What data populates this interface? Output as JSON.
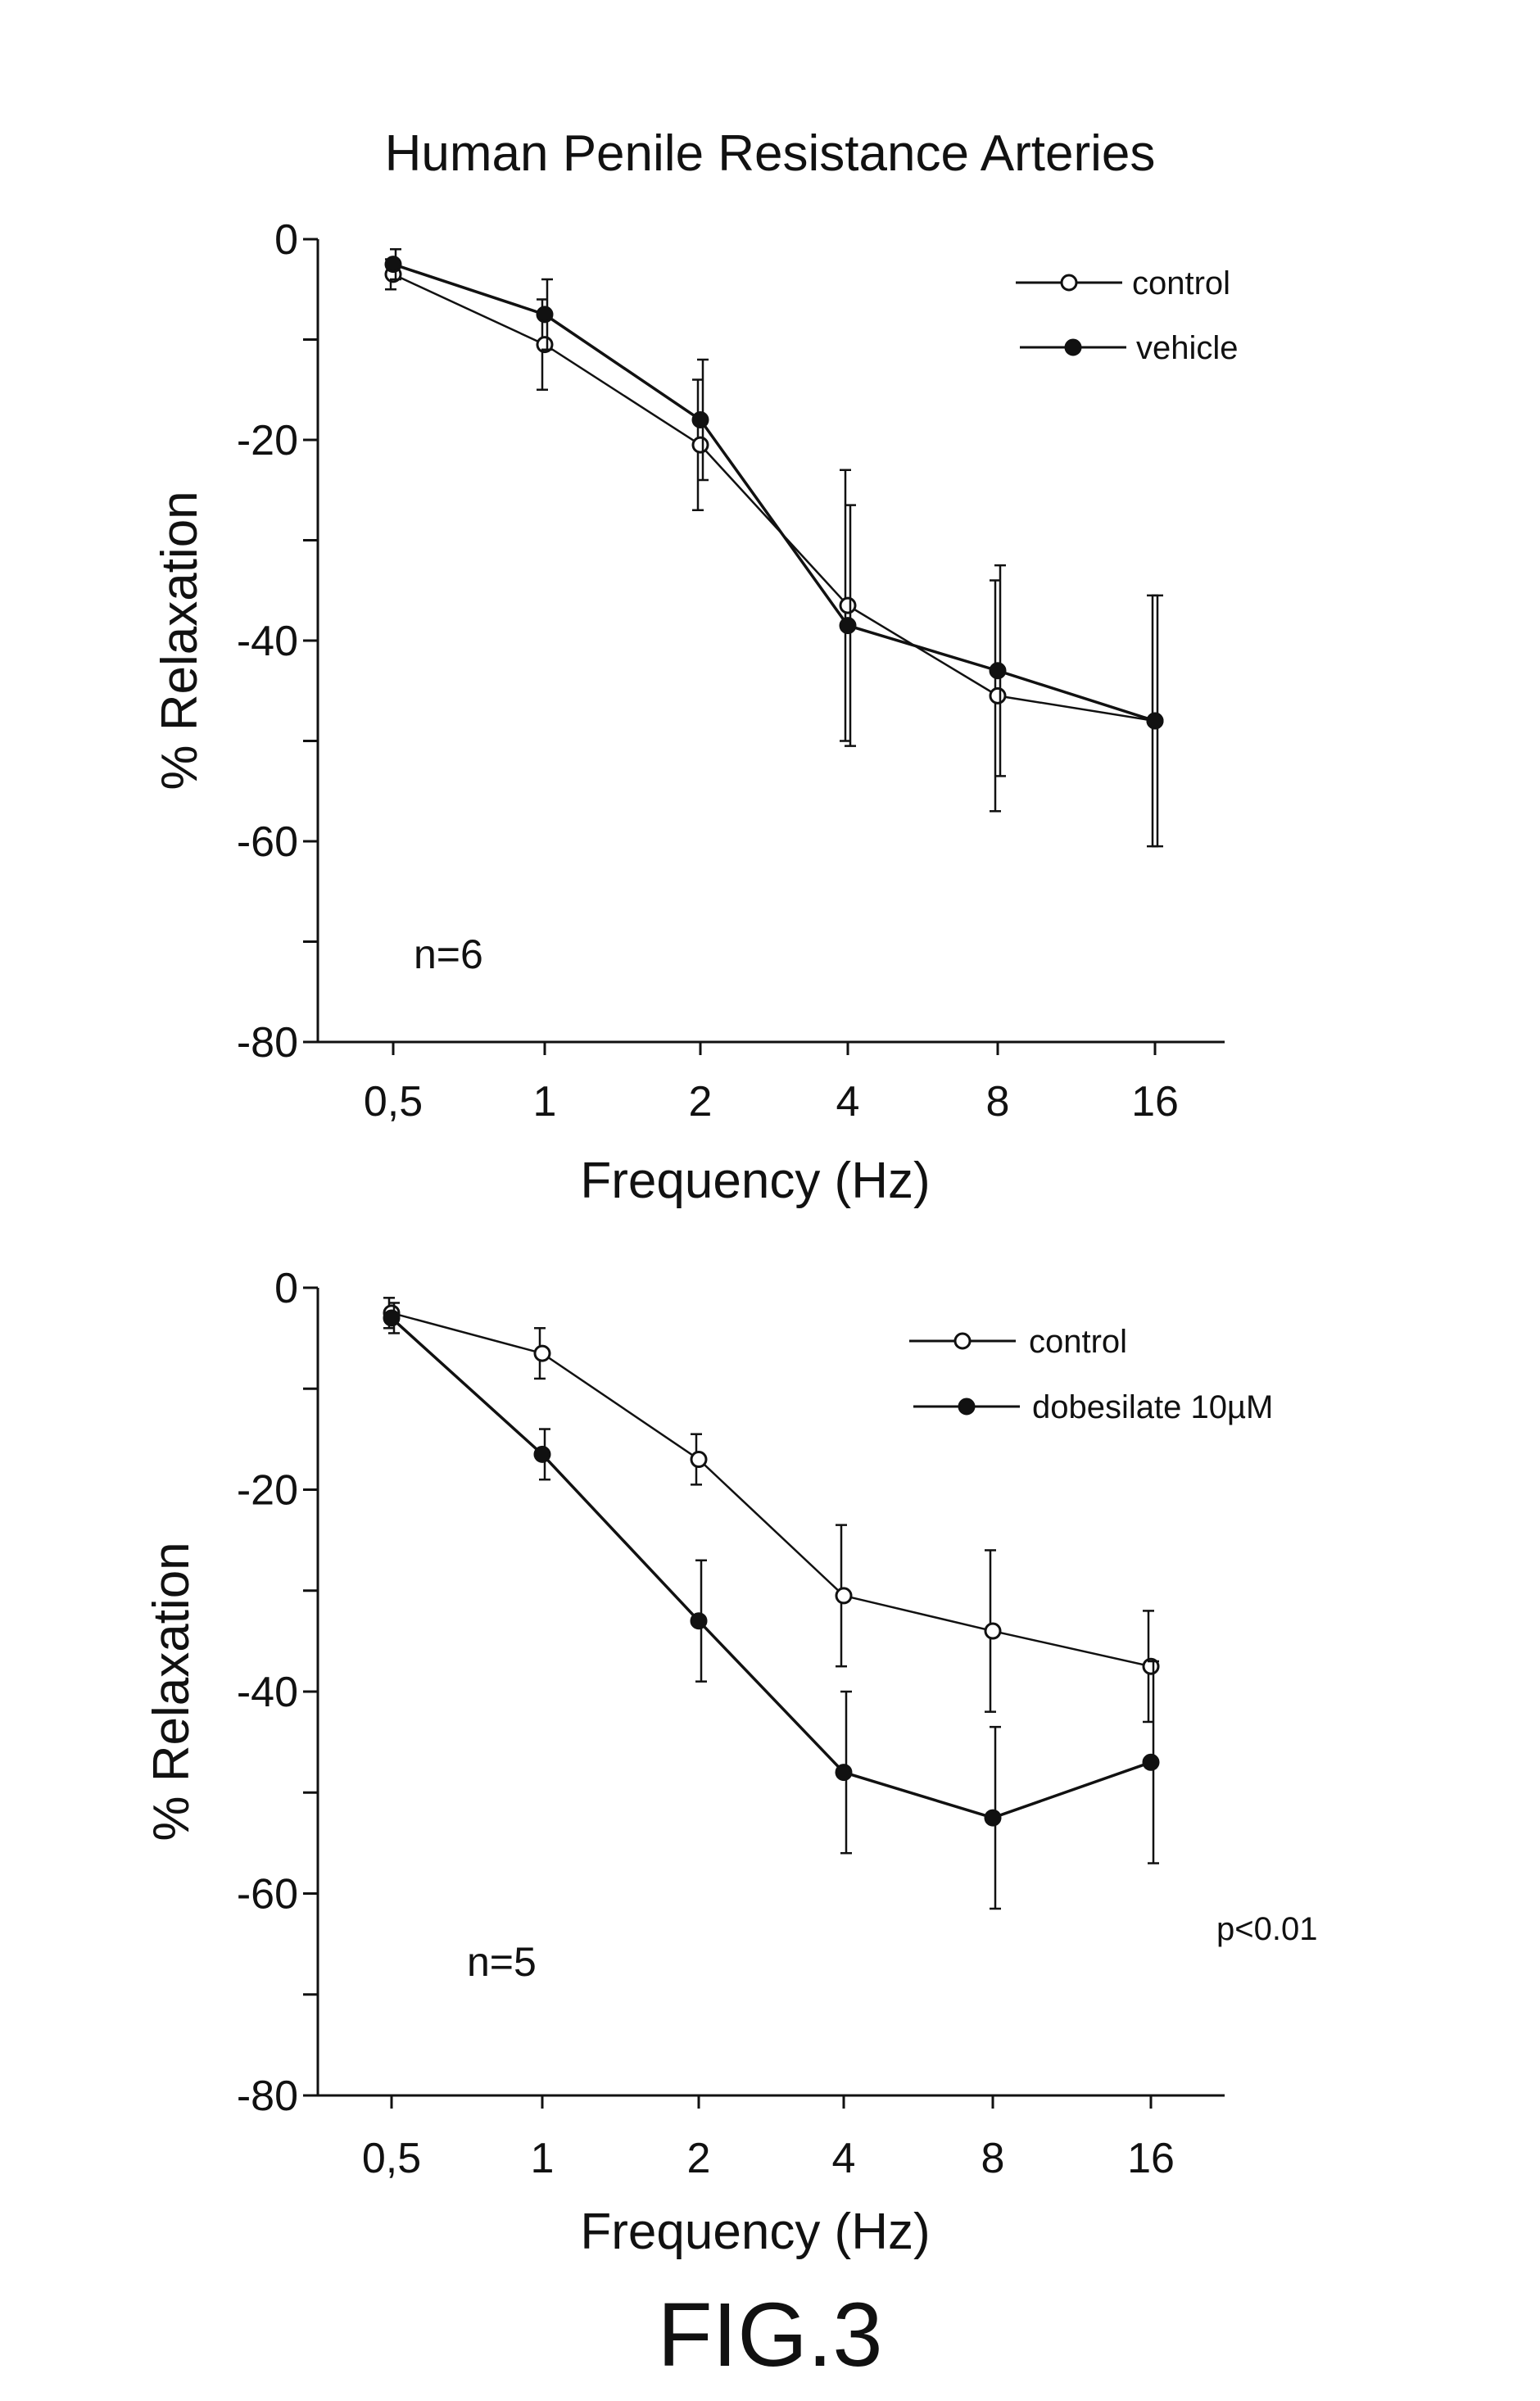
{
  "figure_label": "FIG.3",
  "chart_data": [
    {
      "type": "line",
      "title": "Human Penile Resistance Arteries",
      "xlabel": "Frequency (Hz)",
      "ylabel": "% Relaxation",
      "categories": [
        "0,5",
        "1",
        "2",
        "4",
        "8",
        "16"
      ],
      "ylim": [
        -80,
        0
      ],
      "yticks": [
        "0",
        "-20",
        "-40",
        "-60",
        "-80"
      ],
      "annotation": "n=6",
      "legend_position": "top-right",
      "series": [
        {
          "name": "control",
          "marker": "open-circle",
          "values": [
            -3.5,
            -10.5,
            -20.5,
            -36.5,
            -45.5,
            -48
          ],
          "err": [
            1.5,
            4.5,
            6.5,
            13.5,
            11.5,
            12.5
          ]
        },
        {
          "name": "vehicle",
          "marker": "filled-circle",
          "values": [
            -2.5,
            -7.5,
            -18,
            -38.5,
            -43,
            -48
          ],
          "err": [
            1.5,
            3.5,
            6,
            12,
            10.5,
            12.5
          ]
        }
      ]
    },
    {
      "type": "line",
      "title": "",
      "xlabel": "Frequency (Hz)",
      "ylabel": "% Relaxation",
      "categories": [
        "0,5",
        "1",
        "2",
        "4",
        "8",
        "16"
      ],
      "ylim": [
        -80,
        0
      ],
      "yticks": [
        "0",
        "-20",
        "-40",
        "-60",
        "-80"
      ],
      "annotation": "n=5",
      "stat_note": "p<0.01",
      "legend_position": "top-right",
      "series": [
        {
          "name": "control",
          "marker": "open-circle",
          "values": [
            -2.5,
            -6.5,
            -17,
            -30.5,
            -34,
            -37.5
          ],
          "err": [
            1.5,
            2.5,
            2.5,
            7,
            8,
            5.5
          ]
        },
        {
          "name": "dobesilate 10µM",
          "marker": "filled-circle",
          "values": [
            -3,
            -16.5,
            -33,
            -48,
            -52.5,
            -47
          ],
          "err": [
            1.5,
            2.5,
            6,
            8,
            9,
            10
          ]
        }
      ]
    }
  ]
}
